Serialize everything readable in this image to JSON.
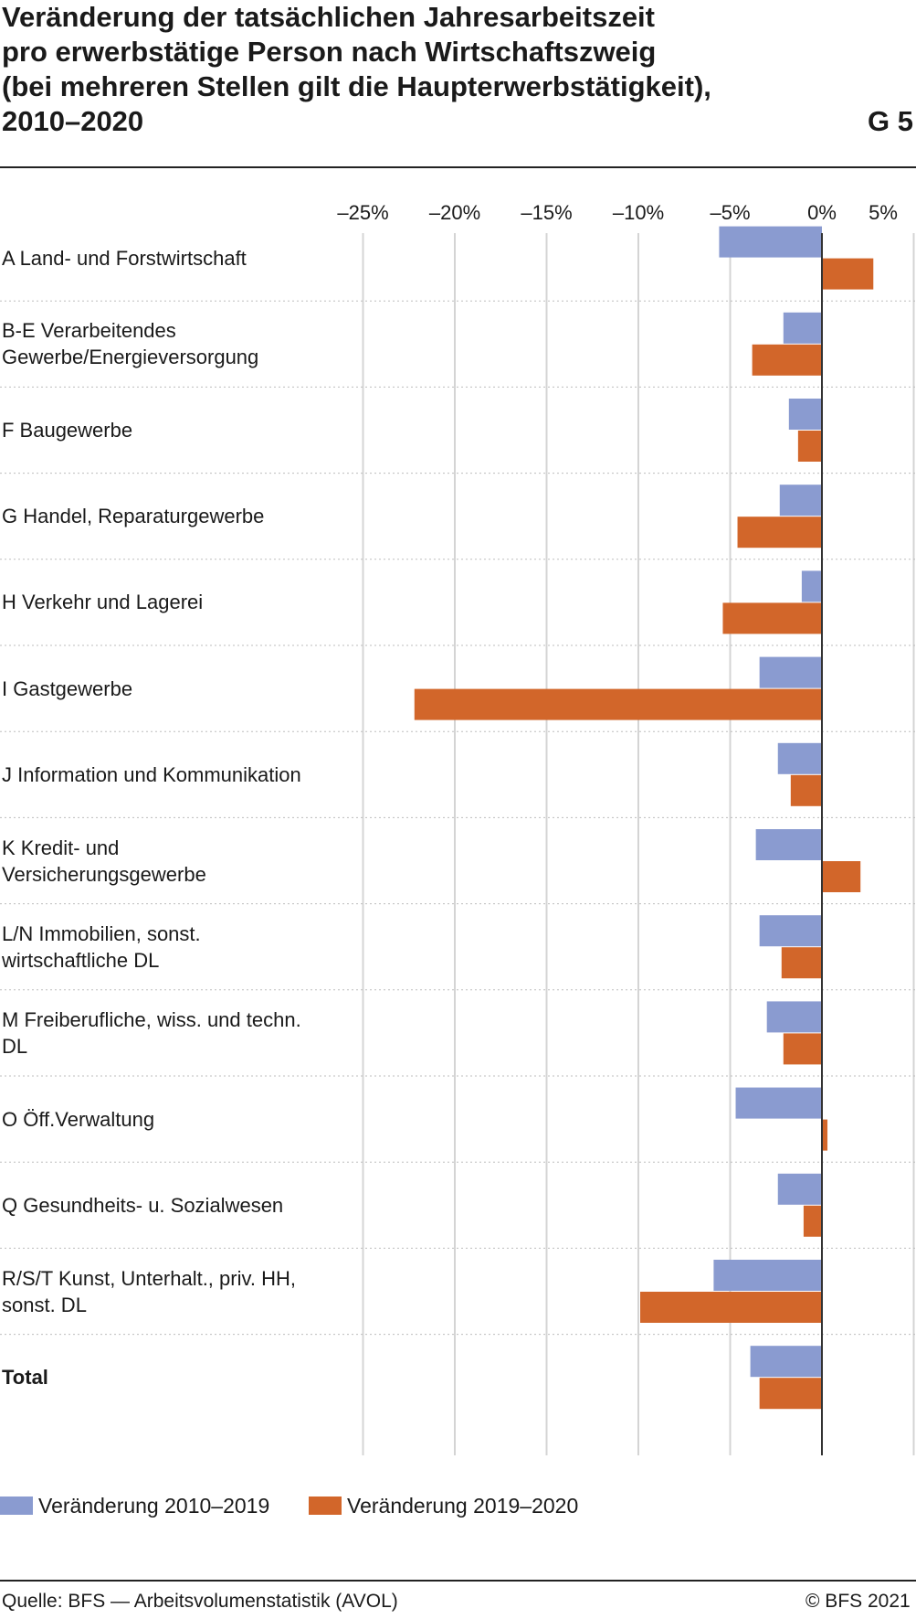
{
  "header": {
    "title_lines": [
      "Veränderung der tatsächlichen Jahresarbeitszeit",
      "pro erwerbstätige Person nach Wirtschaftszweig",
      "(bei mehreren Stellen gilt die Haupterwerbstätigkeit),",
      "2010–2020"
    ],
    "graph_number": "G 5"
  },
  "chart_data": {
    "type": "bar",
    "orientation": "horizontal",
    "title": "Veränderung der tatsächlichen Jahresarbeitszeit pro erwerbstätige Person nach Wirtschaftszweig (bei mehreren Stellen gilt die Haupterwerbstätigkeit), 2010–2020",
    "xlim": [
      -25,
      5
    ],
    "x_ticks": [
      -25,
      -20,
      -15,
      -10,
      -5,
      0,
      5
    ],
    "x_tick_labels": [
      "–25%",
      "–20%",
      "–15%",
      "–10%",
      "–5%",
      "0%",
      "5%"
    ],
    "grid": true,
    "legend_position": "bottom",
    "categories": [
      "A Land- und Forstwirtschaft",
      "B-E Verarbeitendes Gewerbe/Energieversorgung",
      "F Baugewerbe",
      "G Handel, Reparaturgewerbe",
      "H Verkehr und Lagerei",
      "I Gastgewerbe",
      "J Information und Kommunikation",
      "K Kredit- und Versicherungsgewerbe",
      "L/N Immobilien, sonst. wirtschaftliche DL",
      "M Freiberufliche, wiss. und techn. DL",
      "O Öff.Verwaltung",
      "Q Gesundheits- u. Sozialwesen",
      "R/S/T Kunst, Unterhalt., priv. HH, sonst. DL",
      "Total"
    ],
    "category_lines": [
      [
        "A Land- und Forstwirtschaft"
      ],
      [
        "B-E Verarbeitendes",
        "Gewerbe/Energieversorgung"
      ],
      [
        "F Baugewerbe"
      ],
      [
        "G Handel, Reparaturgewerbe"
      ],
      [
        "H Verkehr und Lagerei"
      ],
      [
        "I Gastgewerbe"
      ],
      [
        "J Information und Kommunikation"
      ],
      [
        "K Kredit- und",
        "Versicherungsgewerbe"
      ],
      [
        "L/N Immobilien, sonst.",
        "wirtschaftliche DL"
      ],
      [
        "M Freiberufliche, wiss. und techn.",
        "DL"
      ],
      [
        "O Öff.Verwaltung"
      ],
      [
        "Q Gesundheits- u. Sozialwesen"
      ],
      [
        "R/S/T Kunst, Unterhalt., priv. HH,",
        "sonst. DL"
      ],
      [
        "Total"
      ]
    ],
    "series": [
      {
        "name": "Veränderung 2010–2019",
        "color": "#8a9bd0",
        "values": [
          -5.6,
          -2.1,
          -1.8,
          -2.3,
          -1.1,
          -3.4,
          -2.4,
          -3.6,
          -3.4,
          -3.0,
          -4.7,
          -2.4,
          -5.9,
          -3.9
        ]
      },
      {
        "name": "Veränderung 2019–2020",
        "color": "#d2662a",
        "values": [
          2.8,
          -3.8,
          -1.3,
          -4.6,
          -5.4,
          -22.2,
          -1.7,
          2.1,
          -2.2,
          -2.1,
          0.3,
          -1.0,
          -9.9,
          -3.4
        ]
      }
    ]
  },
  "footer": {
    "source": "Quelle: BFS — Arbeitsvolumenstatistik (AVOL)",
    "copyright": "© BFS 2021"
  }
}
